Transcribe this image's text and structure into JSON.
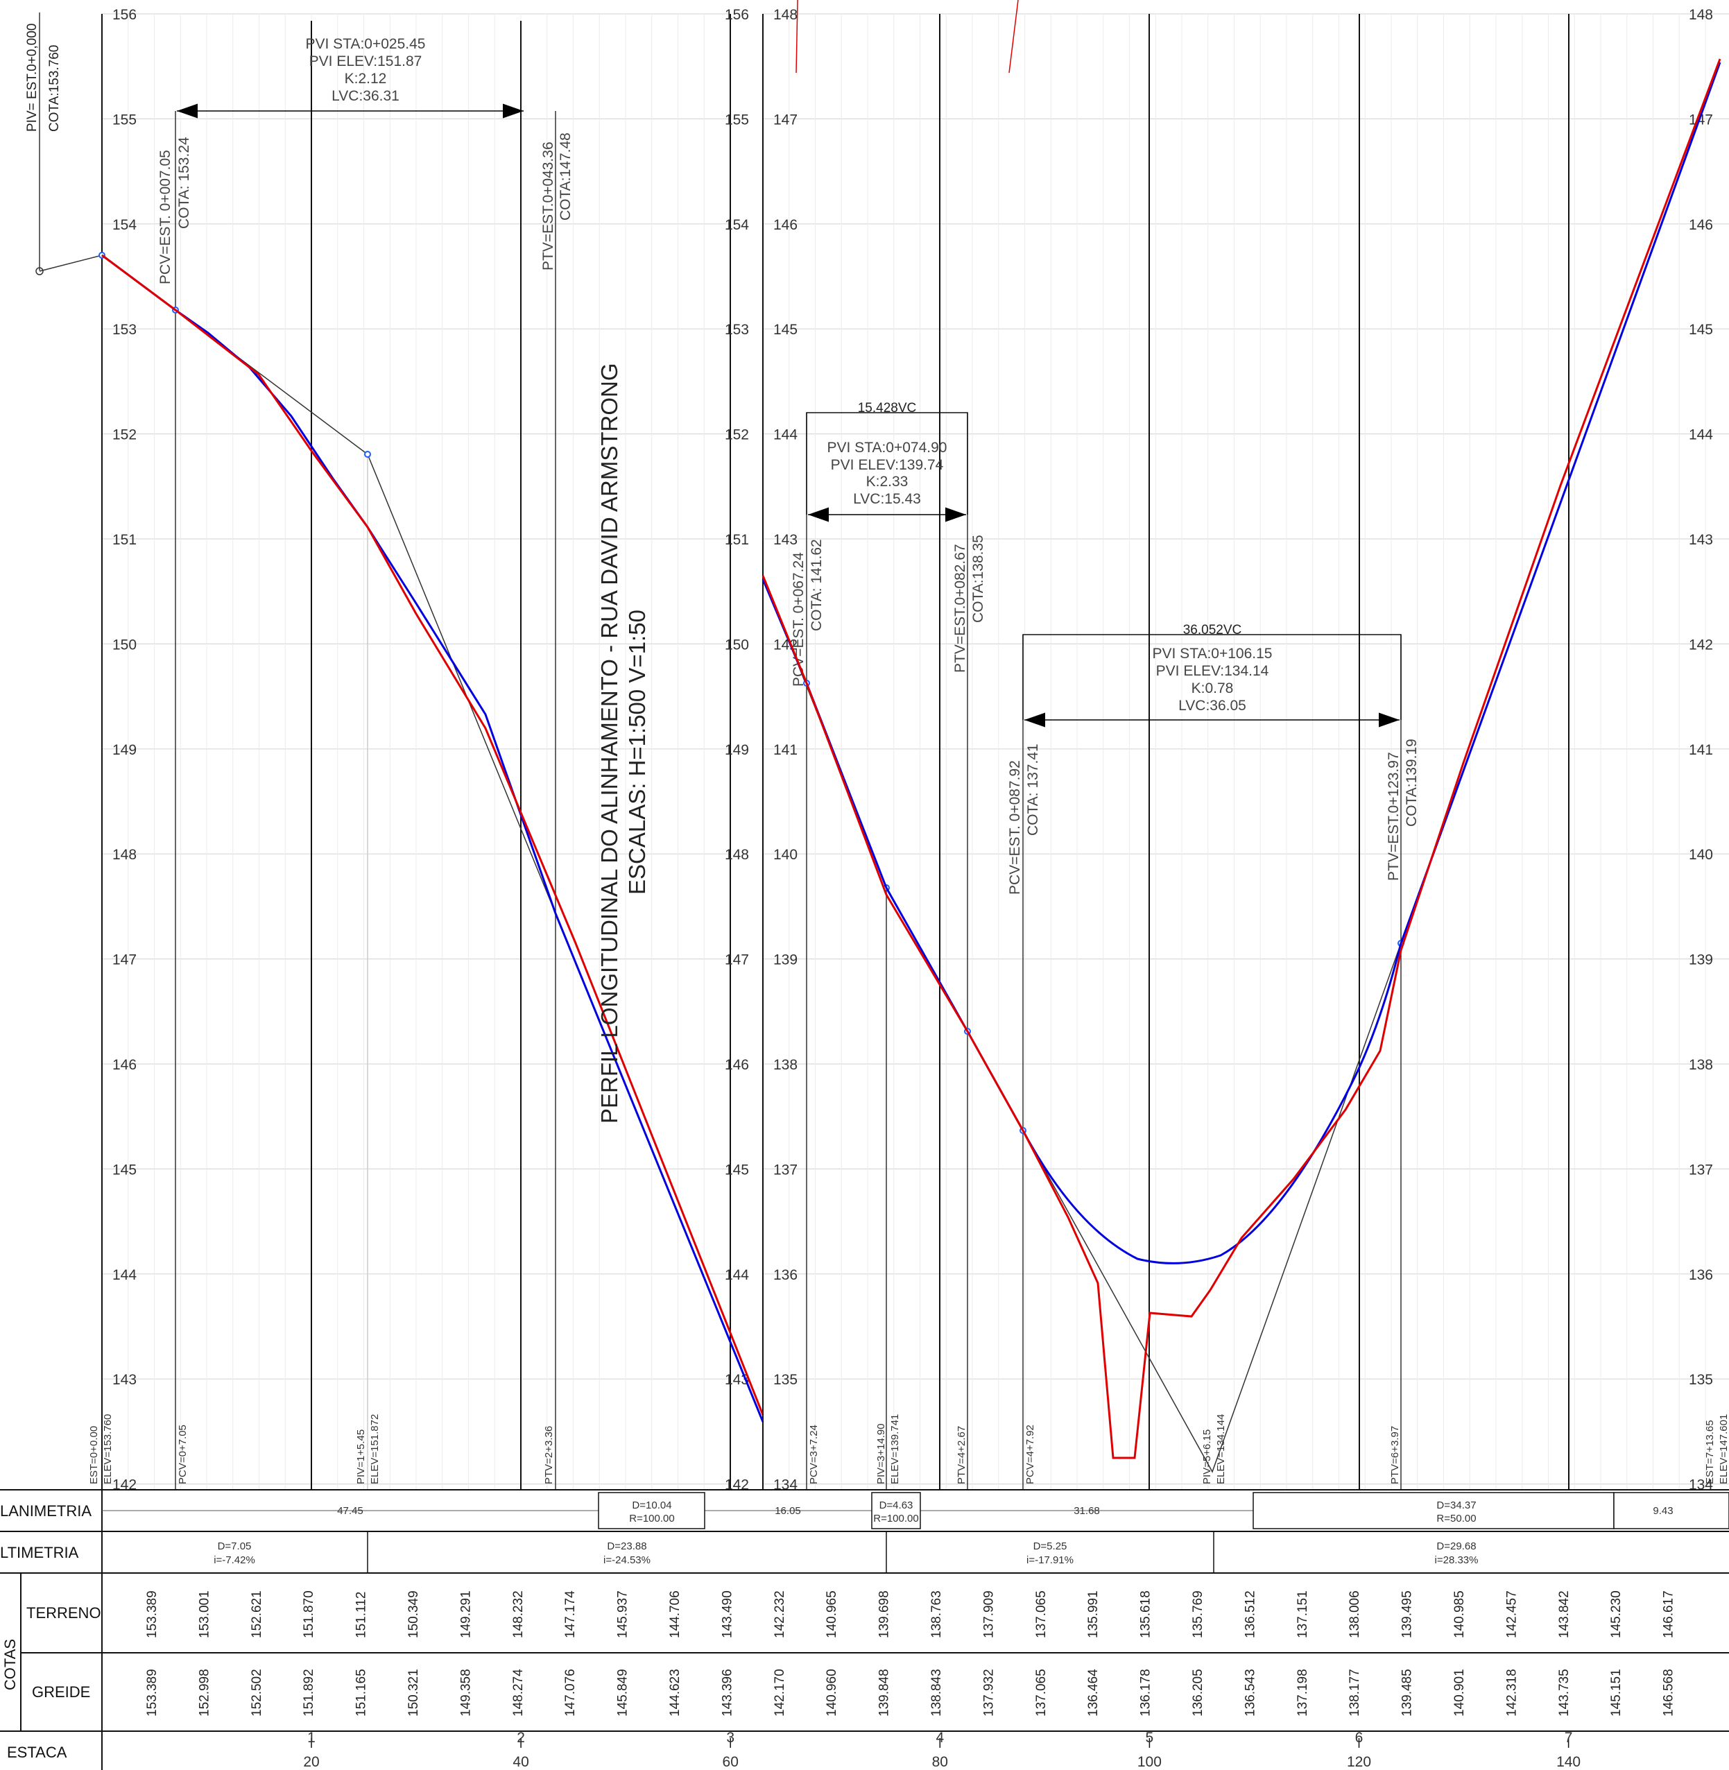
{
  "left": {
    "elev_ticks": [
      "156",
      "155",
      "154",
      "153",
      "152",
      "151",
      "150",
      "149",
      "148",
      "147",
      "146",
      "145",
      "144",
      "143",
      "142"
    ],
    "piv": {
      "label": "PIV= EST.0+0,000",
      "cota": "COTA:153.760"
    },
    "curve": {
      "pvi_sta": "PVI  STA:0+025.45",
      "pvi_elev": "PVI  ELEV:151.87",
      "k": "K:2.12",
      "lvc": "LVC:36.31"
    },
    "pcv": {
      "label": "PCV=EST.  0+007.05",
      "cota": "COTA:  153.24"
    },
    "ptv": {
      "label": "PTV=EST.0+043.36",
      "cota": "COTA:147.48"
    },
    "bottom_labels": [
      {
        "a": "EST=0+0.00",
        "b": "ELEV=153.760"
      },
      {
        "a": "PCV=0+7.05",
        "b": ""
      },
      {
        "a": "PIV=1+5.45",
        "b": "ELEV=151.872"
      },
      {
        "a": "PTV=2+3.36",
        "b": ""
      }
    ]
  },
  "right": {
    "elev_ticks": [
      "148",
      "147",
      "146",
      "145",
      "144",
      "143",
      "142",
      "141",
      "140",
      "139",
      "138",
      "137",
      "136",
      "135",
      "134"
    ],
    "vc1": {
      "title": "15.428VC",
      "pvi_sta": "PVI  STA:0+074.90",
      "pvi_elev": "PVI  ELEV:139.74",
      "k": "K:2.33",
      "lvc": "LVC:15.43",
      "pcv": "PCV=EST.  0+067.24",
      "pcv_cota": "COTA:  141.62",
      "ptv": "PTV=EST.0+082.67",
      "ptv_cota": "COTA:138.35"
    },
    "vc2": {
      "title": "36.052VC",
      "pvi_sta": "PVI  STA:0+106.15",
      "pvi_elev": "PVI  ELEV:134.14",
      "k": "K:0.78",
      "lvc": "LVC:36.05",
      "pcv": "PCV=EST.  0+087.92",
      "pcv_cota": "COTA:  137.41",
      "ptv": "PTV=EST.0+123.97",
      "ptv_cota": "COTA:139.19"
    },
    "bottom_labels": [
      {
        "a": "PCV=3+7.24",
        "b": ""
      },
      {
        "a": "PIV=3+14.90",
        "b": "ELEV=139.741"
      },
      {
        "a": "PTV=4+2.67",
        "b": ""
      },
      {
        "a": "PCV=4+7.92",
        "b": ""
      },
      {
        "a": "PIV=5+6.15",
        "b": "ELEV=134.144"
      },
      {
        "a": "PTV=6+3.97",
        "b": ""
      },
      {
        "a": "EST=7+13.65",
        "b": "ELEV=147.601"
      }
    ]
  },
  "title": {
    "line1": "PERFIL LONGITUDINAL DO ALINHAMENTO - RUA DAVID ARMSTRONG",
    "line2": "ESCALAS: H=1:500 V=1:50"
  },
  "table": {
    "planimetria": {
      "label": "LANIMETRIA",
      "cells": [
        {
          "t1": "47.45",
          "t2": ""
        },
        {
          "t1": "D=10.04",
          "t2": "R=100.00"
        },
        {
          "t1": "16.05",
          "t2": ""
        },
        {
          "t1": "D=4.63",
          "t2": "R=100.00"
        },
        {
          "t1": "31.68",
          "t2": ""
        },
        {
          "t1": "D=34.37",
          "t2": "R=50.00"
        },
        {
          "t1": "9.43",
          "t2": ""
        }
      ]
    },
    "altimetria": {
      "label": "LTIMETRIA",
      "cells": [
        {
          "t1": "D=7.05",
          "t2": "i=-7.42%"
        },
        {
          "t1": "D=23.88",
          "t2": "i=-24.53%"
        },
        {
          "t1": "D=5.25",
          "t2": "i=-17.91%"
        },
        {
          "t1": "D=29.68",
          "t2": "i=28.33%"
        }
      ]
    },
    "side_label": "COTAS",
    "terreno": {
      "label": "TERRENO",
      "values": [
        "153.389",
        "153.001",
        "152.621",
        "151.870",
        "151.112",
        "150.349",
        "149.291",
        "148.232",
        "147.174",
        "145.937",
        "144.706",
        "143.490",
        "142.232",
        "140.965",
        "139.698",
        "138.763",
        "137.909",
        "137.065",
        "135.991",
        "135.618",
        "135.769",
        "136.512",
        "137.151",
        "138.006",
        "139.495",
        "140.985",
        "142.457",
        "143.842",
        "145.230",
        "146.617"
      ]
    },
    "greide": {
      "label": "GREIDE",
      "values": [
        "153.389",
        "152.998",
        "152.502",
        "151.892",
        "151.165",
        "150.321",
        "149.358",
        "148.274",
        "147.076",
        "145.849",
        "144.623",
        "143.396",
        "142.170",
        "140.960",
        "139.848",
        "138.843",
        "137.932",
        "137.065",
        "136.464",
        "136.178",
        "136.205",
        "136.543",
        "137.198",
        "138.177",
        "139.485",
        "140.901",
        "142.318",
        "143.735",
        "145.151",
        "146.568"
      ]
    },
    "estaca": {
      "label": "ESTACA",
      "stations": [
        {
          "est": "1",
          "dist": "20"
        },
        {
          "est": "2",
          "dist": "40"
        },
        {
          "est": "3",
          "dist": "60"
        },
        {
          "est": "4",
          "dist": "80"
        },
        {
          "est": "5",
          "dist": "100"
        },
        {
          "est": "6",
          "dist": "120"
        },
        {
          "est": "7",
          "dist": "140"
        }
      ]
    }
  },
  "colors": {
    "terrain": "#e00000",
    "grade": "#0000e0",
    "grid": "#d8d8d8",
    "line": "#111111"
  }
}
